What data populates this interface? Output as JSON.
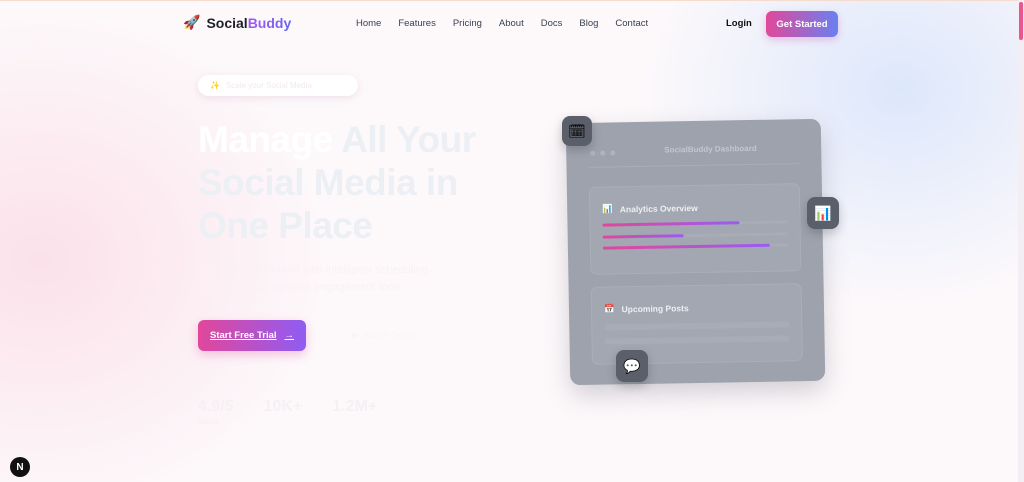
{
  "nav": {
    "brand_a": "Social",
    "brand_b": "Buddy",
    "links": [
      "Home",
      "Features",
      "Pricing",
      "About",
      "Docs",
      "Blog",
      "Contact"
    ],
    "login": "Login",
    "get_started": "Get Started"
  },
  "hero": {
    "badge": "Scale your Social Media",
    "title_w": "Manage",
    "title_rest": " All Your Social Media in One Place",
    "subtitle": "Empower your brand with intelligent scheduling, analytics, and real-time engagement tools",
    "cta": "Start Free Trial",
    "cta_arrow": "→",
    "demo": "▶ Watch Demo",
    "stats": [
      {
        "value": "4.9/5",
        "label": "Rating"
      },
      {
        "value": "10K+",
        "label": ""
      },
      {
        "value": "1.2M+",
        "label": ""
      }
    ]
  },
  "dashboard": {
    "title": "SocialBuddy Dashboard",
    "analytics": "Analytics Overview",
    "analytics_icon": "📊",
    "bars": [
      0.74,
      0.44,
      0.9
    ],
    "upcoming": "Upcoming Posts",
    "upcoming_icon": "📅"
  },
  "floating_icons": [
    "🗓",
    "📊",
    "💬"
  ],
  "accent": "#e1479a",
  "accent2": "#8f5cf3"
}
